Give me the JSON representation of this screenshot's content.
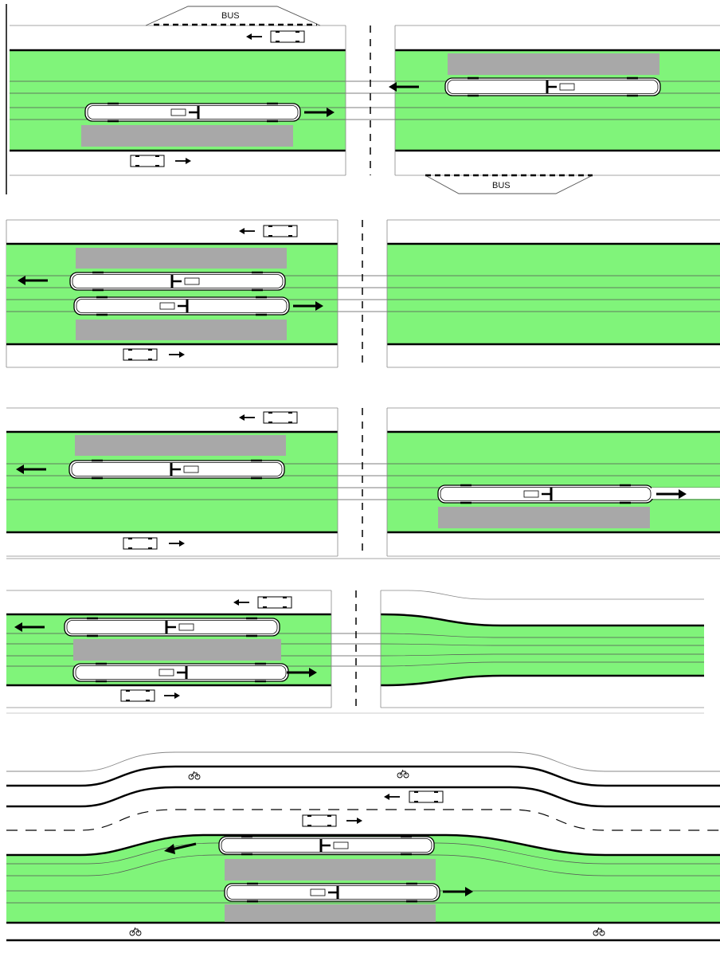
{
  "colors": {
    "track_green": "#80f47a",
    "platform_gray": "#a8a8a8",
    "road_white": "#ffffff",
    "curb_black": "#000000",
    "rail_line": "#555555"
  },
  "labels": {
    "bus_stop_top": "BUS",
    "bus_stop_bottom": "BUS"
  },
  "icons": {
    "car": "car-icon",
    "tram": "tram-icon",
    "arrow": "arrow-icon",
    "bicycle": "bicycle-icon"
  },
  "panels": [
    {
      "name": "far-side-staggered-stops-with-bus-bays",
      "tram_count": 2,
      "platform_count": 2,
      "has_intersection": true,
      "has_bus_bays": true
    },
    {
      "name": "near-side-double-platform-stop",
      "tram_count": 2,
      "platform_count": 2,
      "has_intersection": true,
      "has_bus_bays": false
    },
    {
      "name": "split-platforms-across-intersection",
      "tram_count": 2,
      "platform_count": 2,
      "has_intersection": true,
      "has_bus_bays": false
    },
    {
      "name": "island-platform-with-taper",
      "tram_count": 2,
      "platform_count": 1,
      "has_intersection": true,
      "has_bus_bays": false
    },
    {
      "name": "midblock-stop-with-widened-road-and-bike-lanes",
      "tram_count": 2,
      "platform_count": 2,
      "has_intersection": false,
      "has_bus_bays": false
    }
  ]
}
